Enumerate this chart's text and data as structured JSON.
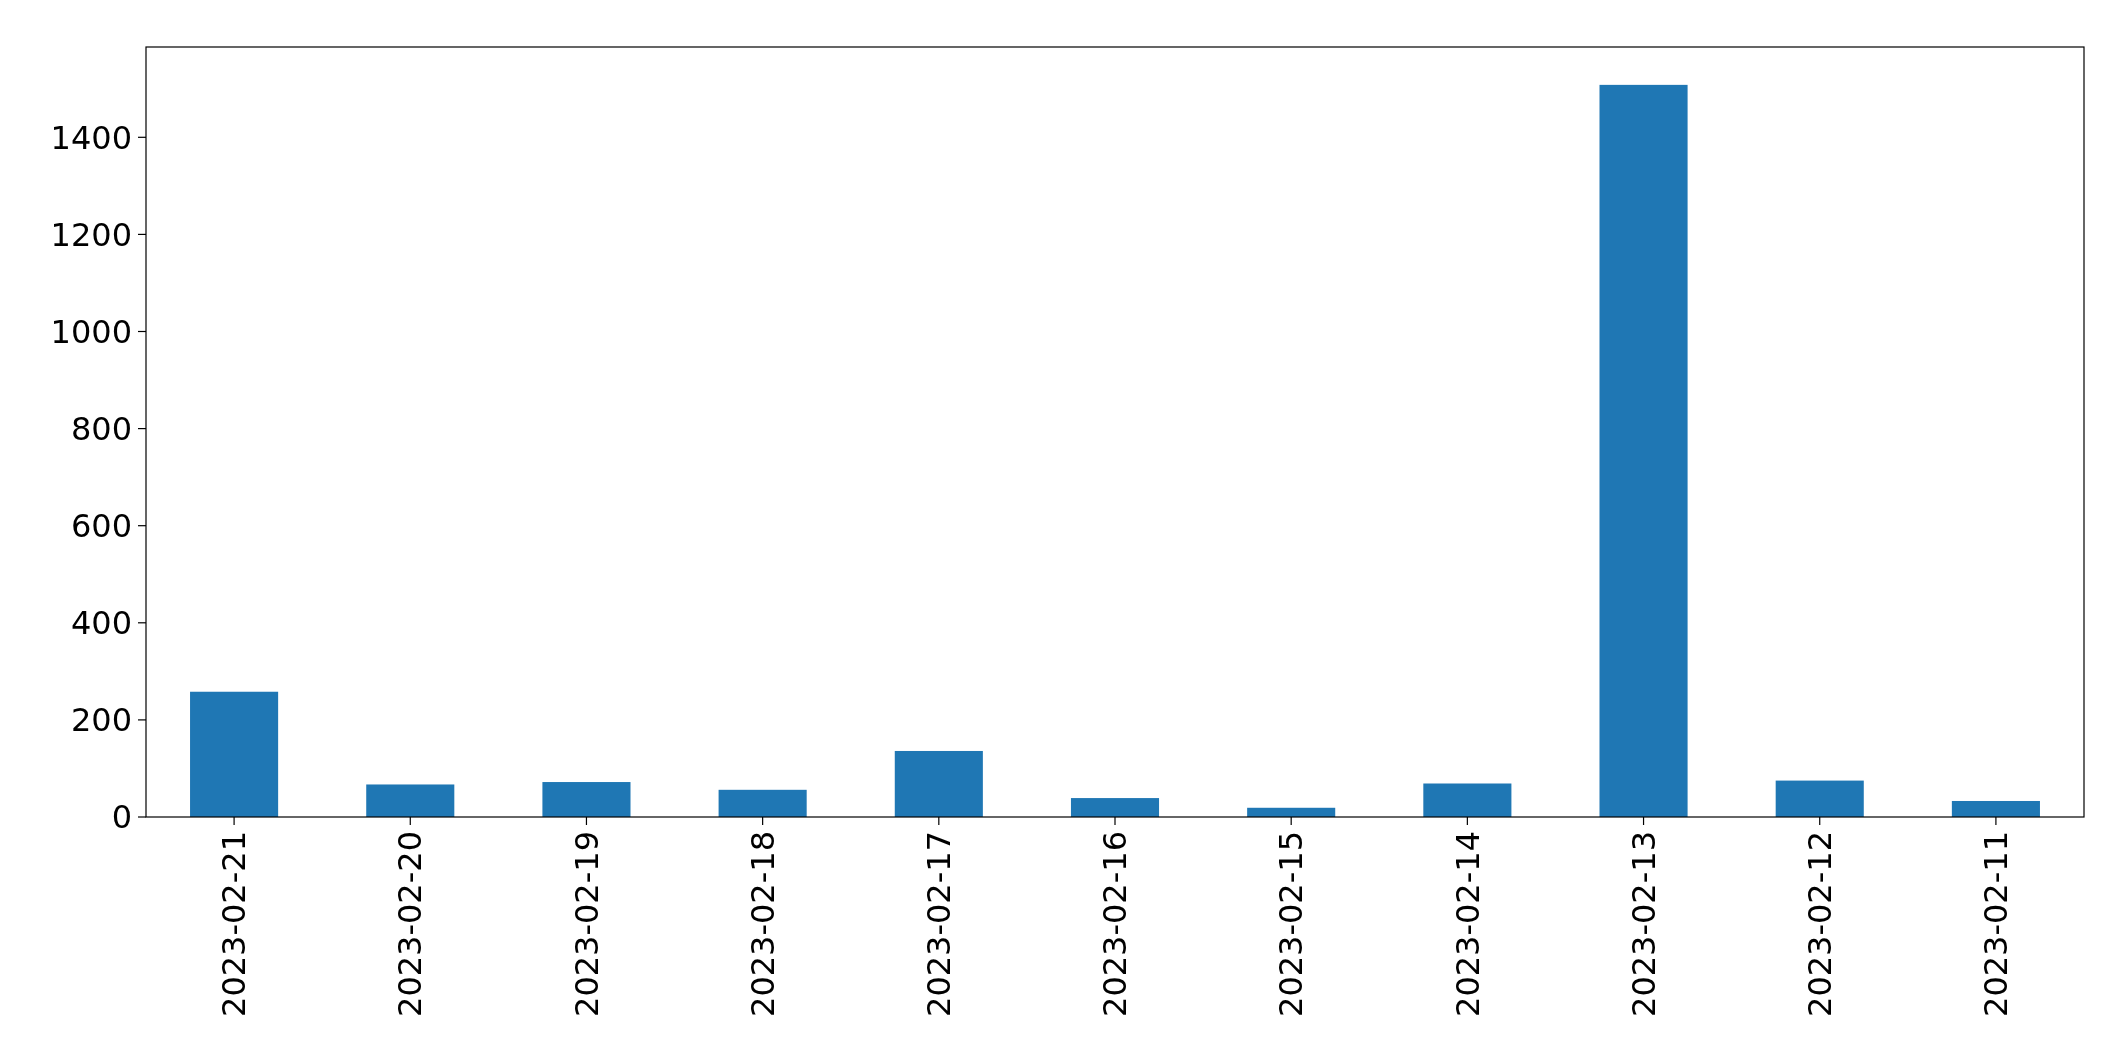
{
  "chart_data": {
    "type": "bar",
    "categories": [
      "2023-02-21",
      "2023-02-20",
      "2023-02-19",
      "2023-02-18",
      "2023-02-17",
      "2023-02-16",
      "2023-02-15",
      "2023-02-14",
      "2023-02-13",
      "2023-02-12",
      "2023-02-11"
    ],
    "values": [
      258,
      67,
      72,
      56,
      136,
      39,
      19,
      69,
      1508,
      75,
      33
    ],
    "color": "#1f77b4",
    "ylim": [
      0,
      1586
    ],
    "yticks": [
      0,
      200,
      400,
      600,
      800,
      1000,
      1200,
      1400
    ],
    "grid": false
  }
}
